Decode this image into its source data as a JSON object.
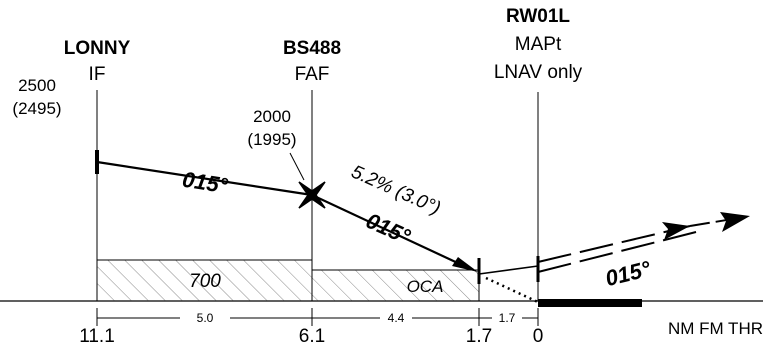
{
  "fixes": {
    "if_fix": {
      "name": "LONNY",
      "role": "IF",
      "altitude": "2500",
      "altitude_alt": "(2495)",
      "distance": "11.1"
    },
    "faf_fix": {
      "name": "BS488",
      "role": "FAF",
      "altitude": "2000",
      "altitude_alt": "(1995)",
      "distance": "6.1"
    },
    "stepdown": {
      "distance": "1.7"
    },
    "mapt_fix": {
      "name": "RW01L",
      "role": "MAPt",
      "note": "LNAV only",
      "distance": "0"
    }
  },
  "segments": {
    "if_to_faf": {
      "course": "015°",
      "length": "5.0"
    },
    "faf_to_sd": {
      "course": "015°",
      "gradient": "5.2% (3.0°)",
      "length": "4.4"
    },
    "sd_to_mapt": {
      "length": "1.7"
    },
    "missed": {
      "course": "015°"
    }
  },
  "obstacle": {
    "segment1_label": "700",
    "segment2_label": "OCA"
  },
  "distance_unit": "NM FM THR",
  "colors": {
    "ink": "#000000",
    "hatch": "#7a7a7a",
    "paper": "#ffffff"
  }
}
